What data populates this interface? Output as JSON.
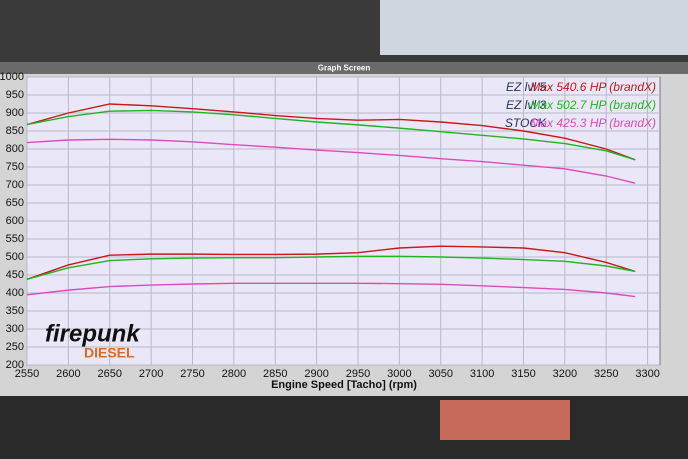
{
  "window_title": "Graph Screen",
  "logo": {
    "top": "firepunk",
    "bottom": "DIESEL"
  },
  "chart_data": {
    "type": "line",
    "xlabel": "Engine Speed [Tacho] (rpm)",
    "x": [
      2550,
      2600,
      2650,
      2700,
      2750,
      2800,
      2850,
      2900,
      2950,
      3000,
      3050,
      3100,
      3150,
      3200,
      3250,
      3285
    ],
    "series": [
      {
        "name": "EZ lvl 5",
        "color": "#c81818",
        "values": [
          868,
          900,
          925,
          920,
          912,
          903,
          893,
          885,
          880,
          882,
          875,
          865,
          850,
          830,
          800,
          770
        ]
      },
      {
        "name": "Max 540.6 HP (brandX)",
        "color": "#c81818",
        "values": [
          438,
          478,
          505,
          508,
          508,
          507,
          507,
          508,
          512,
          525,
          530,
          528,
          525,
          512,
          485,
          460
        ]
      },
      {
        "name": "EZ lvl 3",
        "color": "#1fb51f",
        "values": [
          868,
          890,
          905,
          907,
          903,
          895,
          885,
          875,
          867,
          858,
          848,
          838,
          828,
          815,
          795,
          770
        ]
      },
      {
        "name": "Max 502.7 HP (brandX)",
        "color": "#1fb51f",
        "values": [
          438,
          470,
          490,
          495,
          497,
          498,
          498,
          500,
          502,
          502,
          500,
          497,
          493,
          488,
          475,
          460
        ]
      },
      {
        "name": "STOCK",
        "color": "#e048c0",
        "values": [
          818,
          825,
          827,
          825,
          820,
          812,
          805,
          797,
          790,
          782,
          773,
          765,
          755,
          745,
          725,
          705
        ]
      },
      {
        "name": "Max 425.3 HP (brandX)",
        "color": "#e048c0",
        "values": [
          395,
          408,
          418,
          422,
          425,
          427,
          427,
          427,
          427,
          426,
          424,
          420,
          415,
          410,
          400,
          390
        ]
      }
    ],
    "xlim": [
      2550,
      3315
    ],
    "xticks": [
      2550,
      2600,
      2650,
      2700,
      2750,
      2800,
      2850,
      2900,
      2950,
      3000,
      3050,
      3100,
      3150,
      3200,
      3250,
      3300
    ],
    "ylim": [
      200,
      1000
    ],
    "yticks": [
      200,
      250,
      300,
      350,
      400,
      450,
      500,
      550,
      600,
      650,
      700,
      750,
      800,
      850,
      900,
      950,
      1000
    ],
    "grid": true
  }
}
